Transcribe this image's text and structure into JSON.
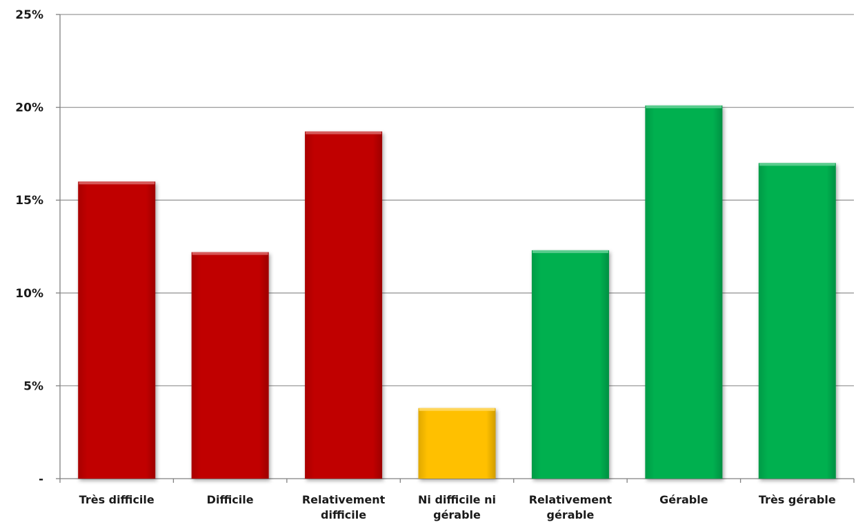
{
  "chart_data": {
    "type": "bar",
    "categories": [
      "Très difficile",
      "Difficile",
      "Relativement difficile",
      "Ni difficile ni gérable",
      "Relativement gérable",
      "Gérable",
      "Très gérable"
    ],
    "category_label_lines": [
      [
        "Très difficile"
      ],
      [
        "Difficile"
      ],
      [
        "Relativement",
        "difficile"
      ],
      [
        "Ni difficile ni",
        "gérable"
      ],
      [
        "Relativement",
        "gérable"
      ],
      [
        "Gérable"
      ],
      [
        "Très gérable"
      ]
    ],
    "values": [
      16.0,
      12.2,
      18.7,
      3.8,
      12.3,
      20.1,
      17.0
    ],
    "bar_colors": [
      "#c00000",
      "#c00000",
      "#c00000",
      "#ffc000",
      "#00b050",
      "#00b050",
      "#00b050"
    ],
    "ylim": [
      0,
      25
    ],
    "yticks": [
      0,
      5,
      10,
      15,
      20,
      25
    ],
    "ytick_labels": [
      "-",
      "5%",
      "10%",
      "15%",
      "20%",
      "25%"
    ],
    "title": "",
    "xlabel": "",
    "ylabel": "",
    "grid": true,
    "legend": "none"
  }
}
